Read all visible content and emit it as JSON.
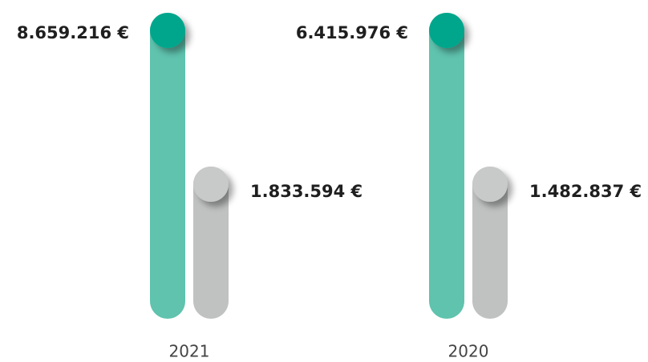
{
  "chart_data": {
    "type": "bar",
    "categories": [
      "2021",
      "2020"
    ],
    "series": [
      {
        "color": "#5fc3ae",
        "knob_color": "#00a68c",
        "values": [
          8659216,
          6415976
        ],
        "value_labels": [
          "8.659.216 €",
          "6.415.976 €"
        ]
      },
      {
        "color": "#c0c1c1",
        "knob_color": "#c8c9c9",
        "values": [
          1833594,
          1482837
        ],
        "value_labels": [
          "1.833.594 €",
          "1.482.837 €"
        ]
      }
    ]
  }
}
